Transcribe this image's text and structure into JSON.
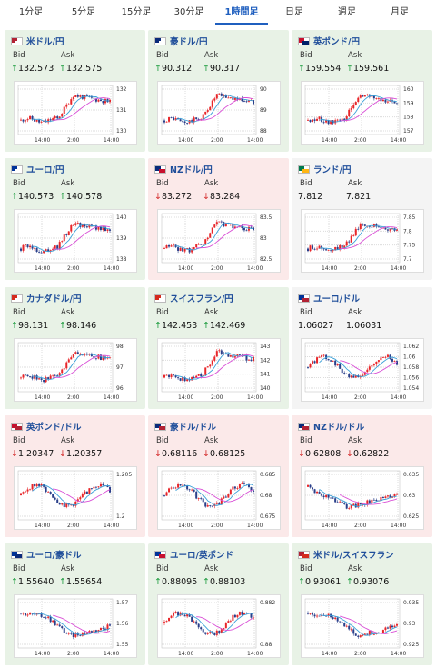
{
  "tabs": [
    {
      "label": "1分足",
      "active": false
    },
    {
      "label": "5分足",
      "active": false
    },
    {
      "label": "15分足",
      "active": false
    },
    {
      "label": "30分足",
      "active": false
    },
    {
      "label": "1時間足",
      "active": true
    },
    {
      "label": "日足",
      "active": false
    },
    {
      "label": "週足",
      "active": false
    },
    {
      "label": "月足",
      "active": false
    }
  ],
  "colors": {
    "up": "#1a9b3c",
    "down": "#d42a2a",
    "candle_up": "#e8262a",
    "candle_down": "#2a3f8a",
    "ma_short": "#3aa0d8",
    "ma_long": "#d94fd6"
  },
  "labels": {
    "bid": "Bid",
    "ask": "Ask"
  },
  "cards": [
    {
      "pair": "米ドル/円",
      "state": "up",
      "flag": [
        "#b22234",
        "#ffffff"
      ],
      "bid_arrow": "↑",
      "bid": "132.573",
      "ask_arrow": "↑",
      "ask": "132.575",
      "yticks": [
        "132",
        "131",
        "130"
      ],
      "xticks": [
        "14:00",
        "2:00",
        "14:00"
      ]
    },
    {
      "pair": "豪ドル/円",
      "state": "up",
      "flag": [
        "#0a2a7a",
        "#ffffff"
      ],
      "bid_arrow": "↑",
      "bid": "90.312",
      "ask_arrow": "↑",
      "ask": "90.317",
      "yticks": [
        "90",
        "89",
        "88"
      ],
      "xticks": [
        "14:00",
        "2:00",
        "14:00"
      ]
    },
    {
      "pair": "英ポンド/円",
      "state": "up",
      "flag": [
        "#c8102e",
        "#012169"
      ],
      "bid_arrow": "↑",
      "bid": "159.554",
      "ask_arrow": "↑",
      "ask": "159.561",
      "yticks": [
        "160",
        "159",
        "158",
        "157"
      ],
      "xticks": [
        "14:00",
        "2:00",
        "14:00"
      ]
    },
    {
      "pair": "ユーロ/円",
      "state": "up",
      "flag": [
        "#003399",
        "#ffffff"
      ],
      "bid_arrow": "↑",
      "bid": "140.573",
      "ask_arrow": "↑",
      "ask": "140.578",
      "yticks": [
        "140",
        "139",
        "138"
      ],
      "xticks": [
        "14:00",
        "2:00",
        "14:00"
      ]
    },
    {
      "pair": "NZドル/円",
      "state": "down",
      "flag": [
        "#0a2a7a",
        "#c8102e"
      ],
      "bid_arrow": "↓",
      "bid": "83.272",
      "ask_arrow": "↓",
      "ask": "83.284",
      "yticks": [
        "83.5",
        "83",
        "82.5"
      ],
      "xticks": [
        "14:00",
        "2:00",
        "14:00"
      ]
    },
    {
      "pair": "ランド/円",
      "state": "flat",
      "flag": [
        "#007a4d",
        "#ffb612"
      ],
      "bid_arrow": "",
      "bid": "7.812",
      "ask_arrow": "",
      "ask": "7.821",
      "yticks": [
        "7.85",
        "7.8",
        "7.75",
        "7.7"
      ],
      "xticks": [
        "14:00",
        "2:00",
        "14:00"
      ]
    },
    {
      "pair": "カナダドル/円",
      "state": "up",
      "flag": [
        "#d52b1e",
        "#ffffff"
      ],
      "bid_arrow": "↑",
      "bid": "98.131",
      "ask_arrow": "↑",
      "ask": "98.146",
      "yticks": [
        "98",
        "97",
        "96"
      ],
      "xticks": [
        "14:00",
        "2:00",
        "14:00"
      ]
    },
    {
      "pair": "スイスフラン/円",
      "state": "up",
      "flag": [
        "#d52b1e",
        "#ffffff"
      ],
      "bid_arrow": "↑",
      "bid": "142.453",
      "ask_arrow": "↑",
      "ask": "142.469",
      "yticks": [
        "143",
        "142",
        "141",
        "140"
      ],
      "xticks": [
        "14:00",
        "2:00",
        "14:00"
      ]
    },
    {
      "pair": "ユーロ/ドル",
      "state": "flat",
      "flag": [
        "#003399",
        "#b22234"
      ],
      "bid_arrow": "",
      "bid": "1.06027",
      "ask_arrow": "",
      "ask": "1.06031",
      "yticks": [
        "1.062",
        "1.06",
        "1.058",
        "1.056",
        "1.054"
      ],
      "xticks": [
        "14:00",
        "2:00",
        "14:00"
      ]
    },
    {
      "pair": "英ポンド/ドル",
      "state": "down",
      "flag": [
        "#c8102e",
        "#b22234"
      ],
      "bid_arrow": "↓",
      "bid": "1.20347",
      "ask_arrow": "↓",
      "ask": "1.20357",
      "yticks": [
        "1.205",
        "1.2"
      ],
      "xticks": [
        "14:00",
        "2:00",
        "14:00"
      ]
    },
    {
      "pair": "豪ドル/ドル",
      "state": "down",
      "flag": [
        "#0a2a7a",
        "#b22234"
      ],
      "bid_arrow": "↓",
      "bid": "0.68116",
      "ask_arrow": "↓",
      "ask": "0.68125",
      "yticks": [
        "0.685",
        "0.68",
        "0.675"
      ],
      "xticks": [
        "14:00",
        "2:00",
        "14:00"
      ]
    },
    {
      "pair": "NZドル/ドル",
      "state": "down",
      "flag": [
        "#0a2a7a",
        "#b22234"
      ],
      "bid_arrow": "↓",
      "bid": "0.62808",
      "ask_arrow": "↓",
      "ask": "0.62822",
      "yticks": [
        "0.635",
        "0.63",
        "0.625"
      ],
      "xticks": [
        "14:00",
        "2:00",
        "14:00"
      ]
    },
    {
      "pair": "ユーロ/豪ドル",
      "state": "up",
      "flag": [
        "#003399",
        "#0a2a7a"
      ],
      "bid_arrow": "↑",
      "bid": "1.55640",
      "ask_arrow": "↑",
      "ask": "1.55654",
      "yticks": [
        "1.57",
        "1.56",
        "1.55"
      ],
      "xticks": [
        "14:00",
        "2:00",
        "14:00"
      ]
    },
    {
      "pair": "ユーロ/英ポンド",
      "state": "up",
      "flag": [
        "#003399",
        "#c8102e"
      ],
      "bid_arrow": "↑",
      "bid": "0.88095",
      "ask_arrow": "↑",
      "ask": "0.88103",
      "yticks": [
        "0.882",
        "0.88"
      ],
      "xticks": [
        "14:00",
        "2:00",
        "14:00"
      ]
    },
    {
      "pair": "米ドル/スイスフラン",
      "state": "up",
      "flag": [
        "#b22234",
        "#d52b1e"
      ],
      "bid_arrow": "↑",
      "bid": "0.93061",
      "ask_arrow": "↑",
      "ask": "0.93076",
      "yticks": [
        "0.935",
        "0.93",
        "0.925"
      ],
      "xticks": [
        "14:00",
        "2:00",
        "14:00"
      ]
    }
  ]
}
